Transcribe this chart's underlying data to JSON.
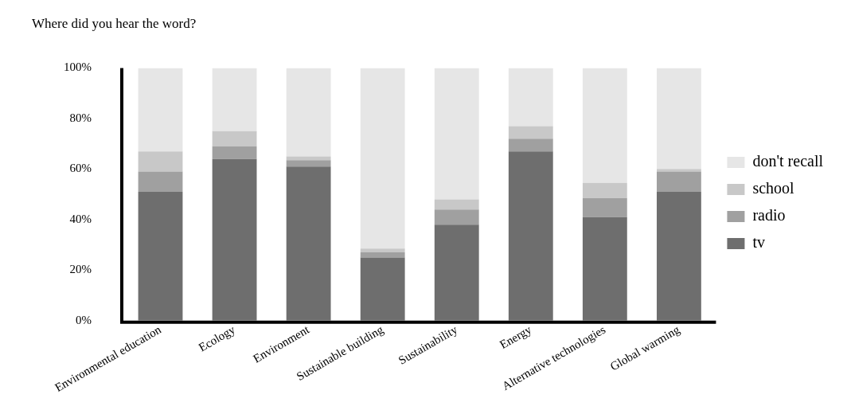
{
  "chart_data": {
    "type": "bar",
    "title": "Where did you hear the word?",
    "categories": [
      "Environmental education",
      "Ecology",
      "Environment",
      "Sustainable building",
      "Sustainability",
      "Energy",
      "Alternative technologies",
      "Global warming"
    ],
    "stacked": true,
    "legend": "right",
    "grid": false,
    "ylim": [
      0,
      100
    ],
    "yticks": [
      {
        "value": 0,
        "label": "0%"
      },
      {
        "value": 20,
        "label": "20%"
      },
      {
        "value": 40,
        "label": "40%"
      },
      {
        "value": 60,
        "label": "60%"
      },
      {
        "value": 80,
        "label": "80%"
      },
      {
        "value": 100,
        "label": "100%"
      }
    ],
    "series": [
      {
        "name": "tv",
        "color": "#6e6e6e",
        "values": [
          51,
          64,
          61,
          25,
          38,
          67,
          41,
          51
        ]
      },
      {
        "name": "radio",
        "color": "#a0a0a0",
        "values": [
          8,
          5,
          2.5,
          2,
          6,
          5,
          7.5,
          8
        ]
      },
      {
        "name": "school",
        "color": "#c8c8c8",
        "values": [
          8,
          6,
          1.5,
          1.5,
          4,
          5,
          6,
          1
        ]
      },
      {
        "name": "don't recall",
        "color": "#e6e6e6",
        "values": [
          33,
          25,
          35,
          71.5,
          52,
          23,
          45.5,
          40
        ]
      }
    ]
  }
}
